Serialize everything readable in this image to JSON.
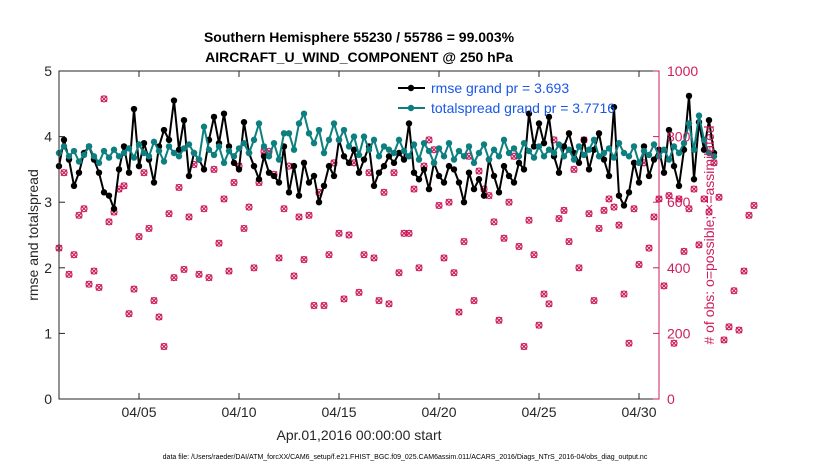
{
  "colors": {
    "rmse": "#000000",
    "spread": "#0d7f80",
    "obs": "#cc1f5e",
    "legend_text": "#1a57e6",
    "right_axis": "#cc1f5e"
  },
  "chart_data": {
    "type": "line",
    "title": "Southern Hemisphere 55230 / 55786 = 99.003%",
    "subtitle": "AIRCRAFT_U_WIND_COMPONENT @ 250 hPa",
    "xlabel": "Apr.01,2016 00:00:00 start",
    "ylabel": "rmse and totalspread",
    "y2label": "# of obs: o=possible; ×=assimilated",
    "xlim": [
      1,
      31
    ],
    "ylim": [
      0,
      5
    ],
    "y2lim": [
      0,
      1000
    ],
    "x_ticks": [
      5,
      10,
      15,
      20,
      25,
      30
    ],
    "x_tick_labels": [
      "04/05",
      "04/10",
      "04/15",
      "04/20",
      "04/25",
      "04/30"
    ],
    "y_ticks": [
      0,
      1,
      2,
      3,
      4,
      5
    ],
    "y_tick_labels": [
      "0",
      "1",
      "2",
      "3",
      "4",
      "5"
    ],
    "y2_ticks": [
      0,
      200,
      400,
      600,
      800,
      1000
    ],
    "y2_tick_labels": [
      "0",
      "200",
      "400",
      "600",
      "800",
      "1000"
    ],
    "legend_position": "top-right",
    "x_start": 1.0,
    "x_step": 0.25,
    "series": [
      {
        "name": "rmse grand pr = 3.693",
        "axis": "left",
        "values": [
          3.55,
          3.95,
          3.65,
          3.25,
          3.45,
          3.75,
          3.85,
          3.65,
          3.45,
          3.15,
          3.1,
          2.9,
          3.5,
          3.85,
          3.45,
          4.42,
          3.55,
          3.9,
          3.65,
          3.3,
          3.85,
          4.1,
          3.95,
          4.55,
          3.8,
          4.25,
          3.4,
          3.75,
          3.65,
          3.5,
          3.95,
          4.3,
          3.9,
          4.35,
          3.85,
          3.6,
          3.5,
          4.22,
          3.75,
          3.55,
          3.35,
          3.7,
          3.45,
          3.4,
          3.3,
          3.85,
          3.15,
          3.55,
          3.1,
          3.6,
          3.3,
          3.4,
          3.0,
          3.25,
          3.55,
          3.4,
          3.95,
          3.7,
          3.6,
          3.8,
          3.45,
          3.65,
          3.85,
          3.25,
          3.45,
          3.55,
          3.7,
          3.6,
          3.75,
          3.65,
          4.2,
          3.45,
          3.35,
          3.5,
          3.2,
          3.6,
          3.4,
          3.3,
          3.55,
          3.5,
          3.3,
          3.0,
          3.45,
          3.2,
          3.35,
          3.1,
          3.65,
          3.4,
          3.15,
          3.55,
          3.4,
          3.3,
          3.6,
          3.5,
          4.35,
          3.85,
          4.2,
          3.9,
          4.3,
          3.7,
          3.45,
          3.85,
          4.05,
          3.75,
          3.6,
          3.95,
          3.5,
          3.8,
          4.05,
          3.65,
          3.4,
          4.45,
          3.1,
          2.95,
          3.15,
          3.6,
          3.3,
          3.85,
          3.4,
          3.65,
          3.8,
          3.45,
          4.1,
          3.55,
          3.25,
          3.8,
          4.62,
          3.35,
          4.22,
          3.8,
          4.25,
          3.75
        ]
      },
      {
        "name": "totalspread grand pr = 3.7716",
        "axis": "left",
        "values": [
          3.75,
          3.85,
          3.7,
          3.78,
          3.62,
          3.72,
          3.85,
          3.7,
          3.6,
          3.78,
          3.68,
          3.8,
          3.7,
          3.75,
          3.82,
          3.68,
          3.88,
          3.75,
          3.7,
          3.92,
          3.78,
          3.62,
          3.85,
          3.75,
          3.7,
          3.82,
          3.88,
          3.75,
          3.65,
          4.15,
          3.8,
          3.72,
          3.85,
          3.6,
          3.78,
          3.7,
          3.82,
          3.9,
          3.75,
          3.95,
          4.2,
          3.85,
          3.7,
          3.9,
          3.65,
          4.05,
          4.05,
          3.8,
          4.2,
          4.35,
          4.05,
          3.9,
          4.1,
          3.75,
          3.95,
          4.2,
          3.95,
          4.1,
          3.85,
          4.0,
          3.72,
          4.0,
          3.8,
          3.95,
          3.7,
          3.85,
          3.8,
          3.75,
          3.95,
          3.78,
          3.7,
          3.88,
          3.65,
          3.9,
          3.78,
          3.6,
          3.82,
          3.7,
          3.9,
          3.65,
          3.78,
          3.7,
          3.85,
          3.6,
          3.75,
          3.88,
          3.65,
          3.8,
          3.7,
          3.95,
          3.75,
          3.82,
          3.7,
          3.9,
          3.78,
          3.68,
          3.85,
          3.7,
          3.8,
          3.75,
          3.88,
          3.7,
          3.8,
          3.65,
          3.85,
          3.72,
          3.8,
          3.95,
          3.7,
          3.75,
          3.82,
          3.68,
          3.9,
          3.75,
          3.7,
          3.85,
          3.6,
          3.78,
          3.72,
          3.88,
          3.7,
          3.8,
          3.65,
          3.85,
          3.75,
          3.9,
          4.2,
          3.8,
          4.32,
          3.95,
          3.75,
          3.7
        ]
      }
    ],
    "obs_series": [
      {
        "name": "possible",
        "axis": "right",
        "values": [
          460,
          690,
          380,
          440,
          560,
          580,
          350,
          390,
          340,
          915,
          540,
          570,
          640,
          650,
          260,
          335,
          495,
          690,
          520,
          300,
          250,
          160,
          565,
          370,
          645,
          395,
          555,
          715,
          380,
          580,
          370,
          700,
          475,
          610,
          390,
          660,
          710,
          520,
          585,
          400,
          660,
          755,
          755,
          685,
          430,
          580,
          710,
          375,
          555,
          425,
          560,
          285,
          630,
          285,
          440,
          720,
          505,
          305,
          500,
          720,
          325,
          440,
          690,
          430,
          300,
          630,
          290,
          690,
          385,
          505,
          505,
          640,
          400,
          710,
          790,
          760,
          590,
          430,
          600,
          385,
          265,
          480,
          740,
          300,
          695,
          640,
          620,
          540,
          240,
          490,
          600,
          740,
          465,
          160,
          545,
          440,
          225,
          320,
          290,
          790,
          550,
          575,
          480,
          700,
          400,
          790,
          565,
          300,
          520,
          575,
          610,
          585,
          530,
          320,
          170,
          580,
          410,
          720,
          460,
          555,
          610,
          345,
          620,
          170,
          610,
          450,
          580,
          640,
          470,
          610,
          570,
          720,
          615,
          180,
          220,
          330,
          210,
          390,
          560,
          590
        ]
      }
    ]
  },
  "footer": {
    "file_path": "data file: /Users/raeder/DAI/ATM_forcXX/CAM6_setup/f.e21.FHIST_BGC.f09_025.CAM6assim.011/ACARS_2016/Diags_NTrS_2016-04/obs_diag_output.nc"
  }
}
